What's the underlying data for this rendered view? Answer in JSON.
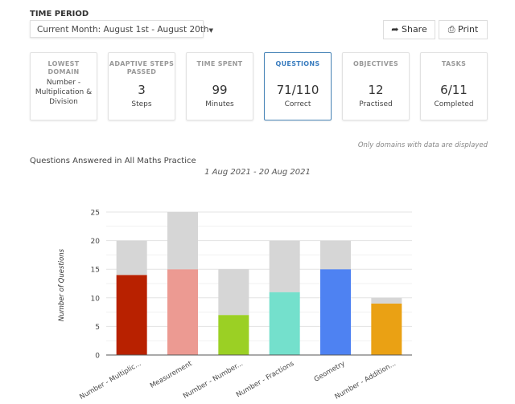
{
  "time_period": {
    "label": "TIME PERIOD",
    "selected": "Current Month: August 1st - August 20th",
    "caret_icon": "caret-down-icon"
  },
  "toolbar": {
    "share_label": "Share",
    "share_icon": "share-icon",
    "print_label": "Print",
    "print_icon": "printer-icon"
  },
  "cards": [
    {
      "title": "LOWEST DOMAIN",
      "detail": "Number - Multiplication & Division"
    },
    {
      "title": "ADAPTIVE STEPS PASSED",
      "value": "3",
      "unit": "Steps"
    },
    {
      "title": "TIME SPENT",
      "value": "99",
      "unit": "Minutes"
    },
    {
      "title": "QUESTIONS",
      "value": "71/110",
      "unit": "Correct",
      "active": true
    },
    {
      "title": "OBJECTIVES",
      "value": "12",
      "unit": "Practised"
    },
    {
      "title": "TASKS",
      "value": "6/11",
      "unit": "Completed"
    }
  ],
  "note": "Only domains with data are displayed",
  "chart_data": {
    "type": "bar",
    "stacked": true,
    "title": "Questions Answered in All Maths Practice",
    "subtitle": "1 Aug 2021 - 20 Aug 2021",
    "xlabel": "",
    "ylabel": "Number of Questions",
    "ylim": [
      0,
      25
    ],
    "yticks": [
      0,
      5,
      10,
      15,
      20,
      25
    ],
    "grid": true,
    "categories": [
      "Number - Multiplic...",
      "Measurement",
      "Number - Number...",
      "Number - Fractions",
      "Geometry",
      "Number - Addition..."
    ],
    "series": [
      {
        "values": [
          14,
          15,
          7,
          11,
          15,
          9
        ],
        "colors": [
          "#b82100",
          "#ec9a92",
          "#9bd024",
          "#74e0cc",
          "#4e82f2",
          "#eaa114"
        ]
      },
      {
        "values": [
          6,
          10,
          8,
          9,
          5,
          1
        ],
        "color": "#d6d6d6"
      }
    ]
  }
}
